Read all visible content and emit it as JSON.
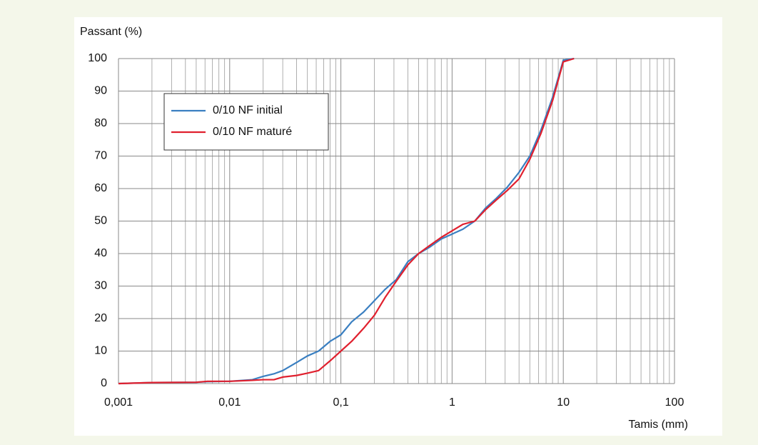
{
  "chart_data": {
    "type": "line",
    "ylabel": "Passant (%)",
    "xlabel": "Tamis (mm)",
    "x": [
      0.001,
      0.002,
      0.005,
      0.0063,
      0.01,
      0.016,
      0.02,
      0.025,
      0.03,
      0.04,
      0.05,
      0.063,
      0.08,
      0.1,
      0.125,
      0.16,
      0.2,
      0.25,
      0.315,
      0.4,
      0.5,
      0.63,
      0.8,
      1,
      1.25,
      1.6,
      2,
      2.5,
      3.15,
      4,
      5,
      6.3,
      8,
      10,
      12.5
    ],
    "series": [
      {
        "name": "0/10 NF initial",
        "color": "#3a7fc1",
        "values": [
          0,
          0.3,
          0.4,
          0.6,
          0.7,
          1.2,
          2.2,
          3,
          4,
          6.5,
          8.5,
          10,
          13,
          15,
          19,
          22,
          25.5,
          29,
          32,
          37.5,
          40,
          42,
          44.5,
          46,
          47.5,
          50,
          54,
          57,
          60.5,
          65,
          70,
          78,
          88,
          99.5,
          100
        ]
      },
      {
        "name": "0/10 NF maturé",
        "color": "#e0202e",
        "values": [
          0,
          0.3,
          0.4,
          0.7,
          0.7,
          1,
          1.2,
          1.2,
          2,
          2.5,
          3.2,
          4,
          7,
          10,
          13,
          17,
          21,
          26.5,
          31.5,
          36.5,
          40,
          42.5,
          45,
          47,
          49,
          50,
          53.5,
          56.5,
          59.5,
          63,
          69,
          77,
          87,
          99,
          100
        ]
      }
    ],
    "xlog": true,
    "grid": true,
    "xlim": [
      0.001,
      100
    ],
    "xticks": [
      {
        "value": 0.001,
        "label": "0,001"
      },
      {
        "value": 0.01,
        "label": "0,01"
      },
      {
        "value": 0.1,
        "label": "0,1"
      },
      1,
      10,
      100
    ],
    "ylim": [
      0,
      100
    ],
    "yticks": [
      0,
      10,
      20,
      30,
      40,
      50,
      60,
      70,
      80,
      90,
      100
    ]
  }
}
